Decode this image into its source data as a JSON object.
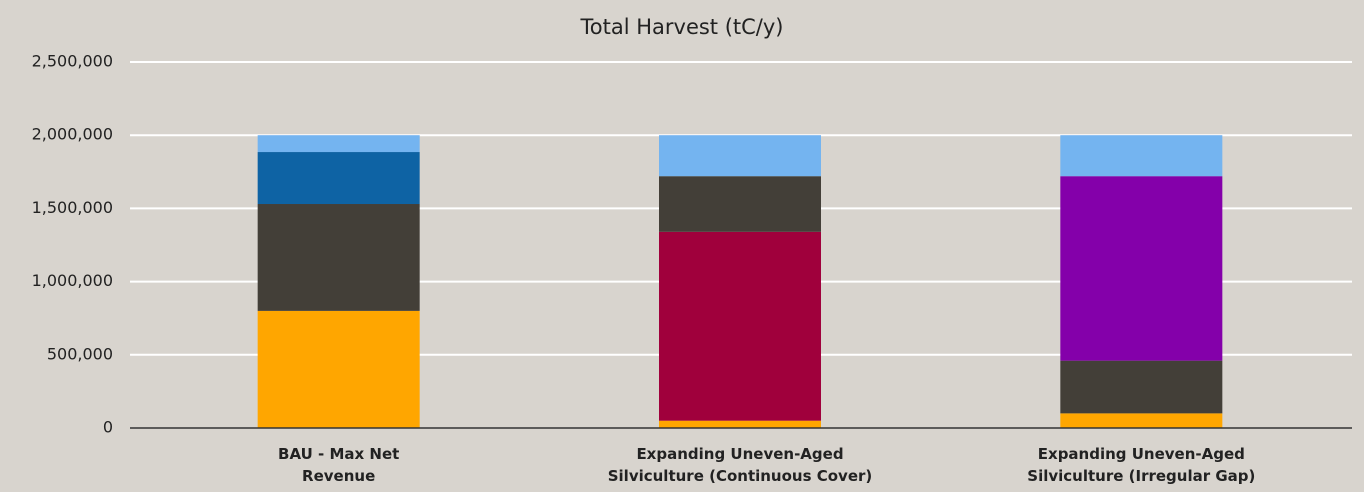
{
  "chart_data": {
    "type": "stacked_bar",
    "title": "Total Harvest (tC/y)",
    "categories": [
      [
        "BAU - Max Net",
        "Revenue"
      ],
      [
        "Expanding Uneven-Aged",
        "Silviculture (Continuous Cover)"
      ],
      [
        "Expanding Uneven-Aged",
        "Silviculture (Irregular Gap)"
      ]
    ],
    "series": [
      {
        "color": "#ffa600",
        "values": [
          800000,
          50000,
          100000
        ]
      },
      {
        "color": "#a0003c",
        "values": [
          null,
          1290000,
          null
        ]
      },
      {
        "color": "#433f38",
        "values": [
          730000,
          380000,
          360000
        ]
      },
      {
        "color": "#8400aa",
        "values": [
          null,
          null,
          1260000
        ]
      },
      {
        "color": "#0e63a4",
        "values": [
          355000,
          null,
          null
        ]
      },
      {
        "color": "#74b4f0",
        "values": [
          115000,
          280000,
          280000
        ]
      }
    ],
    "ylim": [
      0,
      2500000
    ],
    "yticks": [
      0,
      {
        "value": 500000,
        "label": "500,000"
      },
      {
        "value": 1000000,
        "label": "1,000,000"
      },
      {
        "value": 1500000,
        "label": "1,500,000"
      },
      {
        "value": 2000000,
        "label": "2,000,000"
      },
      {
        "value": 2500000,
        "label": "2,500,000"
      }
    ],
    "grid": true
  }
}
